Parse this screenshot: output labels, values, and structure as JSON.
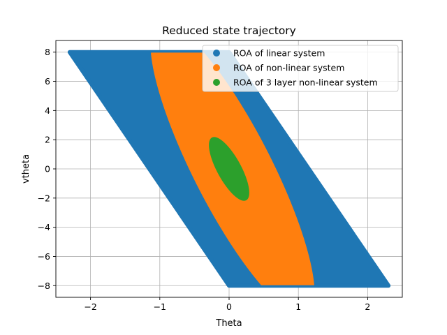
{
  "chart_data": {
    "type": "scatter",
    "title": "Reduced state trajectory",
    "xlabel": "Theta",
    "ylabel": "vtheta",
    "xlim": [
      -2.5,
      2.5
    ],
    "ylim": [
      -8.8,
      8.8
    ],
    "xticks": [
      -2,
      -1,
      0,
      1,
      2
    ],
    "yticks": [
      -8,
      -6,
      -4,
      -2,
      0,
      2,
      4,
      6,
      8
    ],
    "xtick_labels": [
      "−2",
      "−1",
      "0",
      "1",
      "2"
    ],
    "ytick_labels": [
      "−8",
      "−6",
      "−4",
      "−2",
      "0",
      "2",
      "4",
      "6",
      "8"
    ],
    "grid": true,
    "legend_position": "top-right",
    "series": [
      {
        "name": "ROA of linear system",
        "color": "#1f77b4",
        "shape": "parallelogram",
        "x": [
          -2.3,
          0.0,
          2.3,
          0.0
        ],
        "y": [
          8.0,
          8.0,
          -8.0,
          -8.0
        ]
      },
      {
        "name": "ROA of non-linear system",
        "color": "#ff7f0e",
        "shape": "ellipse",
        "center": [
          0.05,
          0.0
        ],
        "theta_amplitude": 0.62,
        "vtheta_amplitude": 10.0,
        "coupling": -0.1,
        "clip_y": [
          -8.0,
          8.0
        ]
      },
      {
        "name": "ROA of 3 layer non-linear system",
        "color": "#2ca02c",
        "shape": "ellipse",
        "center": [
          0.0,
          0.0
        ],
        "theta_amplitude": 0.185,
        "vtheta_amplitude": 2.15,
        "coupling": -0.1,
        "clip_y": [
          -8.0,
          8.0
        ]
      }
    ]
  }
}
